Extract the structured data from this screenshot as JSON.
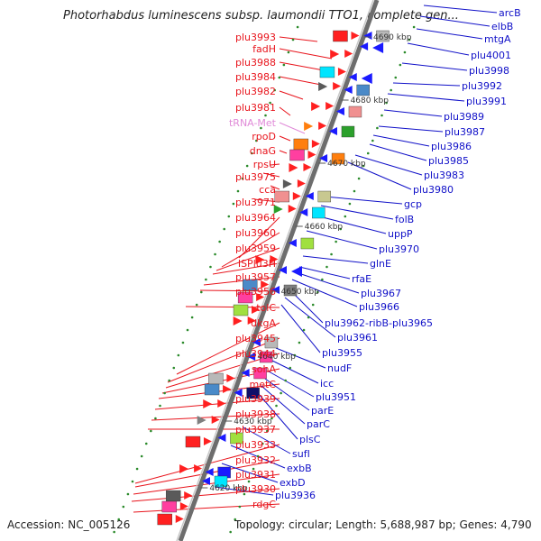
{
  "title": "Photorhabdus luminescens subsp. laumondii TTO1, complete gen...",
  "footer": {
    "accession": "Accession: NC_005126",
    "summary": "Topology: circular; Length: 5,688,987 bp; Genes: 4,790"
  },
  "colors": {
    "forward_label": "#e8141c",
    "reverse_label": "#1010c8",
    "trna_label": "#e08ad8",
    "backbone": "#8c8c8c",
    "tick_label": "#333333",
    "dot": "#2a8a2a"
  },
  "scale_ticks": [
    "4690 kbp",
    "4680 kbp",
    "4670 kbp",
    "4660 kbp",
    "4650 kbp",
    "4640 kbp",
    "4630 kbp",
    "4620 kbp"
  ],
  "left_labels": [
    "plu3993",
    "fadH",
    "plu3988",
    "plu3984",
    "plu3982",
    "plu3981",
    "tRNA-Met",
    "rpoD",
    "dnaG",
    "rpsU",
    "plu3975",
    "cca",
    "plu3971",
    "plu3964",
    "plu3960",
    "plu3959",
    "ISPlu3H",
    "plu3957",
    "plu3956",
    "tolC",
    "dkgA",
    "plu3945",
    "plu3944",
    "sohA",
    "metC",
    "plu3939",
    "plu3938",
    "plu3937",
    "plu3933",
    "plu3932",
    "plu3931",
    "plu3930",
    "rdgC"
  ],
  "right_labels": [
    "arcB",
    "elbB",
    "mtgA",
    "plu4001",
    "plu3998",
    "plu3992",
    "plu3991",
    "plu3989",
    "plu3987",
    "plu3986",
    "plu3985",
    "plu3983",
    "plu3980",
    "gcp",
    "folB",
    "uppP",
    "plu3970",
    "glnE",
    "rfaE",
    "plu3967",
    "plu3966",
    "plu3962-ribB-plu3965",
    "plu3961",
    "plu3955",
    "nudF",
    "icc",
    "plu3951",
    "parE",
    "parC",
    "plsC",
    "sufI",
    "exbB",
    "exbD",
    "plu3936"
  ]
}
